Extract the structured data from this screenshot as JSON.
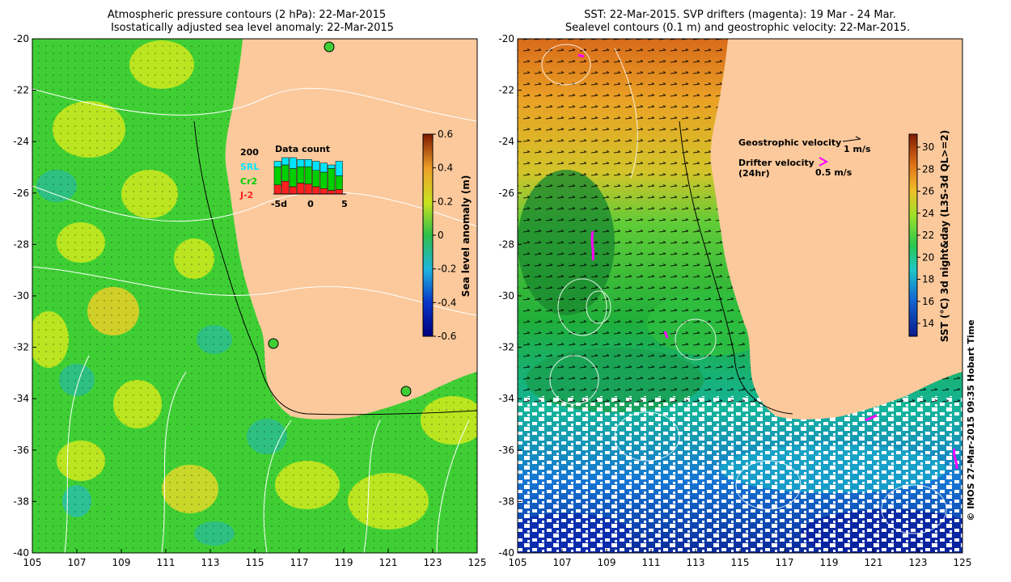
{
  "left_panel": {
    "title_line1": "Atmospheric pressure contours (2 hPa): 22-Mar-2015",
    "title_line2": "Isostatically adjusted sea level anomaly: 22-Mar-2015",
    "colorbar": {
      "label": "Sea level anomaly (m)",
      "ticks": [
        "0.6",
        "0.4",
        "0.2",
        "0",
        "-0.2",
        "-0.4",
        "-0.6"
      ]
    },
    "data_count": {
      "title": "Data count",
      "max_label": "200",
      "series": [
        {
          "name": "SRL",
          "color": "#00e5ff"
        },
        {
          "name": "Cr2",
          "color": "#00d000"
        },
        {
          "name": "J-2",
          "color": "#ff2020"
        }
      ],
      "x_ticks": [
        "-5d",
        "0",
        "5"
      ],
      "bars": [
        {
          "day": -5,
          "srl": 180,
          "cr2": 150,
          "j2": 50
        },
        {
          "day": -4,
          "srl": 200,
          "cr2": 160,
          "j2": 70
        },
        {
          "day": -3,
          "srl": 200,
          "cr2": 140,
          "j2": 40
        },
        {
          "day": -2,
          "srl": 190,
          "cr2": 150,
          "j2": 60
        },
        {
          "day": -1,
          "srl": 190,
          "cr2": 150,
          "j2": 55
        },
        {
          "day": 0,
          "srl": 180,
          "cr2": 130,
          "j2": 40
        },
        {
          "day": 1,
          "srl": 170,
          "cr2": 120,
          "j2": 30
        },
        {
          "day": 2,
          "srl": 160,
          "cr2": 140,
          "j2": 20
        },
        {
          "day": 3,
          "srl": 180,
          "cr2": 100,
          "j2": 25
        }
      ]
    }
  },
  "right_panel": {
    "title_line1": "SST: 22-Mar-2015. SVP drifters (magenta): 19 Mar - 24 Mar.",
    "title_line2": "Sealevel contours (0.1 m) and geostrophic velocity: 22-Mar-2015.",
    "legend": {
      "geo_label": "Geostrophic velocity",
      "geo_scale": "1 m/s",
      "drifter_label_1": "Drifter velocity",
      "drifter_label_2": "(24hr)",
      "drifter_scale": "0.5 m/s"
    },
    "colorbar": {
      "label": "SST (°C) 3d night&day (L3S-3d QL>=2)",
      "ticks": [
        "30",
        "28",
        "26",
        "24",
        "22",
        "20",
        "18",
        "16",
        "14"
      ]
    }
  },
  "axes": {
    "x_ticks": [
      "105",
      "107",
      "109",
      "111",
      "113",
      "115",
      "117",
      "119",
      "121",
      "123",
      "125"
    ],
    "y_ticks": [
      "-20",
      "-22",
      "-24",
      "-26",
      "-28",
      "-30",
      "-32",
      "-34",
      "-36",
      "-38",
      "-40"
    ]
  },
  "credit": "© IMOS 27-Mar-2015 09:35 Hobart Time",
  "colors": {
    "land": "#fbc99c",
    "sla_green": "#3fcf35",
    "sla_yellow": "#c8e81e",
    "sst_orange": "#e6a020",
    "sst_green": "#22b83a",
    "sst_blue": "#1a66cc",
    "drifter": "#ff00ff"
  }
}
